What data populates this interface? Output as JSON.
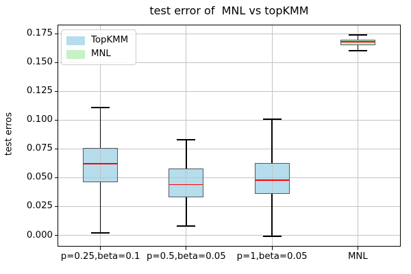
{
  "figure": {
    "title": "test error of  MNL vs topKMM",
    "ylabel": "test erros",
    "background": "#ffffff"
  },
  "legend": {
    "position": "upper left",
    "items": [
      {
        "label": "TopKMM",
        "color": "#b5ddec"
      },
      {
        "label": "MNL",
        "color": "#c6f2c6"
      }
    ]
  },
  "chart_data": {
    "type": "boxplot",
    "title": "test error of  MNL vs topKMM",
    "xlabel": "",
    "ylabel": "test erros",
    "categories": [
      "p=0.25,beta=0.1",
      "p=0.5,beta=0.05",
      "p=1,beta=0.05",
      "MNL"
    ],
    "boxes": [
      {
        "category": "p=0.25,beta=0.1",
        "series": "TopKMM",
        "whislo": 0.002,
        "q1": 0.046,
        "med": 0.062,
        "q3": 0.076,
        "whishi": 0.111,
        "fill": "#b5ddec"
      },
      {
        "category": "p=0.5,beta=0.05",
        "series": "TopKMM",
        "whislo": 0.008,
        "q1": 0.033,
        "med": 0.044,
        "q3": 0.058,
        "whishi": 0.083,
        "fill": "#b5ddec"
      },
      {
        "category": "p=1,beta=0.05",
        "series": "TopKMM",
        "whislo": -0.001,
        "q1": 0.036,
        "med": 0.048,
        "q3": 0.063,
        "whishi": 0.101,
        "fill": "#b5ddec"
      },
      {
        "category": "MNL",
        "series": "MNL",
        "whislo": 0.16,
        "q1": 0.165,
        "med": 0.168,
        "q3": 0.17,
        "whishi": 0.174,
        "fill": "#c6f2c6"
      }
    ],
    "yticks": [
      0.0,
      0.025,
      0.05,
      0.075,
      0.1,
      0.125,
      0.15,
      0.175
    ],
    "ytick_decimals": 3,
    "ylim": [
      -0.0098,
      0.1828
    ],
    "grid": true,
    "grid_color": "#c3c3c3",
    "median_color": "#ff0000",
    "whisker_color": "#000000",
    "box_edge_color": "#4d5a63",
    "legend_position": "upper left"
  }
}
